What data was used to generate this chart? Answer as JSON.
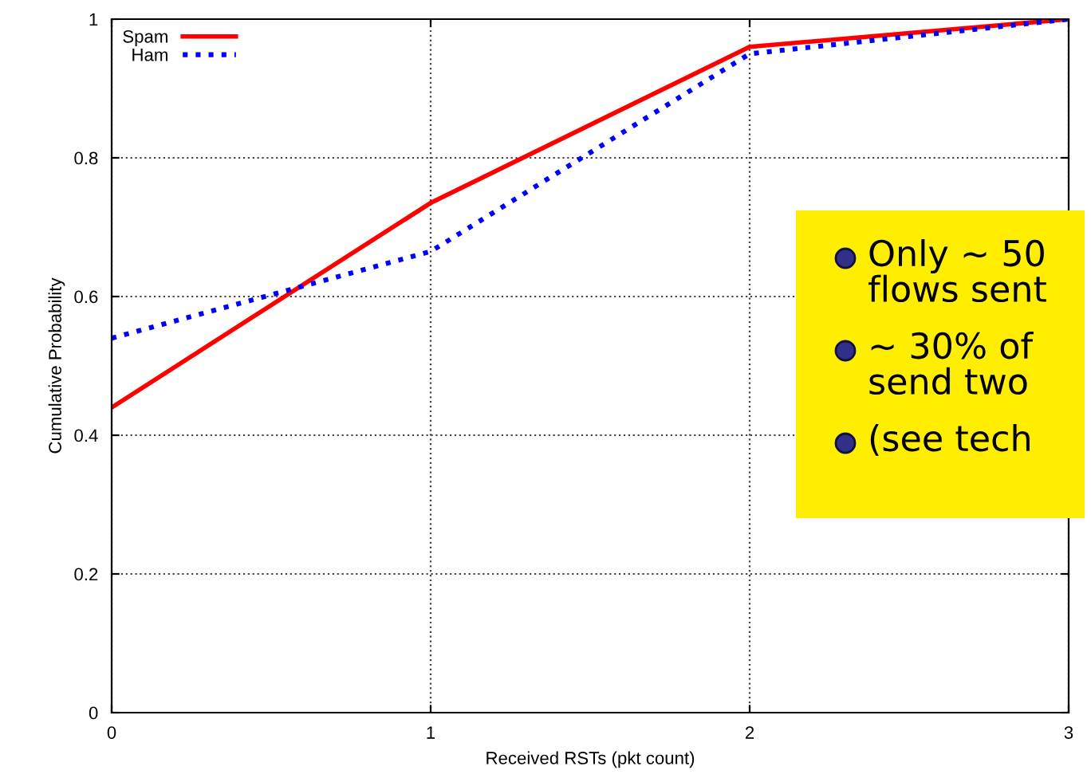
{
  "chart_data": {
    "type": "line",
    "xlabel": "Received RSTs (pkt count)",
    "ylabel": "Cumulative Probability",
    "x": [
      0,
      1,
      2,
      3
    ],
    "xlim": [
      0,
      3
    ],
    "xticks": [
      0,
      1,
      2,
      3
    ],
    "ylim": [
      0,
      1
    ],
    "yticks": [
      0,
      0.2,
      0.4,
      0.6,
      0.8,
      1
    ],
    "series": [
      {
        "name": "Spam",
        "color": "#ff0000",
        "values": [
          0.44,
          0.735,
          0.96,
          1.0
        ],
        "line_style": "solid"
      },
      {
        "name": "Ham",
        "color": "#0000ff",
        "values": [
          0.54,
          0.665,
          0.95,
          1.0
        ],
        "line_style": "dotted"
      }
    ],
    "grid": true,
    "legend": "top left",
    "annotations": [
      "Only ∼ 50\nflows sent",
      "∼ 30% of\nsend two",
      "(see tech"
    ]
  }
}
